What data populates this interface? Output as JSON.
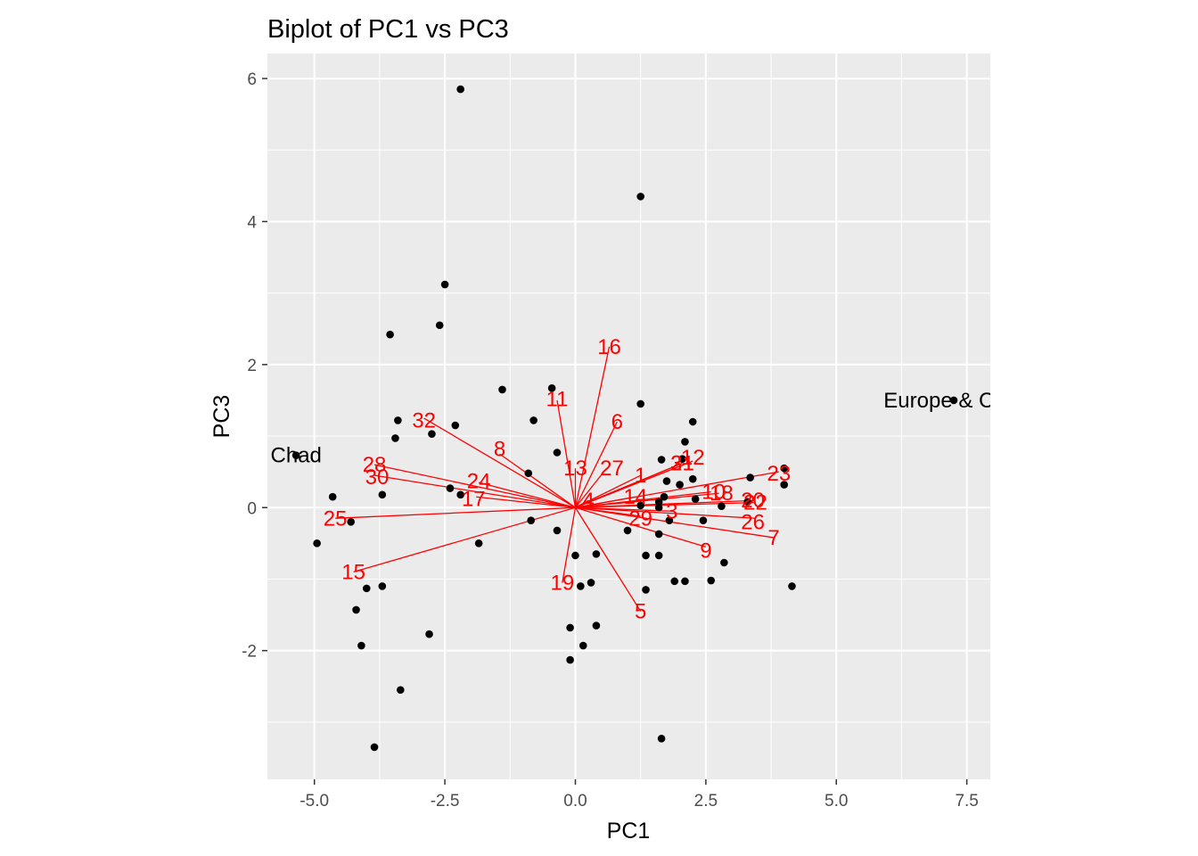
{
  "chart_data": {
    "type": "scatter",
    "title": "Biplot of PC1 vs PC3",
    "xlabel": "PC1",
    "ylabel": "PC3",
    "xlim": [
      -5.9,
      7.95
    ],
    "ylim": [
      -3.8,
      6.35
    ],
    "x_ticks": [
      -5.0,
      -2.5,
      0.0,
      2.5,
      5.0,
      7.5
    ],
    "x_tick_labels": [
      "-5.0",
      "-2.5",
      "0.0",
      "2.5",
      "5.0",
      "7.5"
    ],
    "y_ticks": [
      -2,
      0,
      2,
      4,
      6
    ],
    "y_tick_labels": [
      "-2",
      "0",
      "2",
      "4",
      "6"
    ],
    "grid": true,
    "panel_background": "#ebebeb",
    "point_color": "#000000",
    "loading_color": "#ff0000",
    "points": [
      [
        -2.2,
        5.85
      ],
      [
        1.25,
        4.35
      ],
      [
        -2.5,
        3.12
      ],
      [
        -2.6,
        2.55
      ],
      [
        -3.55,
        2.42
      ],
      [
        -1.4,
        1.65
      ],
      [
        -0.45,
        1.67
      ],
      [
        1.25,
        1.45
      ],
      [
        -3.4,
        1.22
      ],
      [
        -2.3,
        1.15
      ],
      [
        -0.8,
        1.22
      ],
      [
        -2.75,
        1.03
      ],
      [
        -3.45,
        0.97
      ],
      [
        -0.35,
        0.77
      ],
      [
        2.1,
        0.92
      ],
      [
        2.25,
        1.2
      ],
      [
        -0.9,
        0.48
      ],
      [
        1.65,
        0.67
      ],
      [
        2.05,
        0.68
      ],
      [
        1.75,
        0.37
      ],
      [
        2.0,
        0.32
      ],
      [
        2.25,
        0.4
      ],
      [
        4.0,
        0.55
      ],
      [
        3.35,
        0.42
      ],
      [
        4.0,
        0.32
      ],
      [
        -2.4,
        0.27
      ],
      [
        -2.2,
        0.18
      ],
      [
        -3.7,
        0.18
      ],
      [
        -4.65,
        0.15
      ],
      [
        1.7,
        0.15
      ],
      [
        2.3,
        0.12
      ],
      [
        2.8,
        0.02
      ],
      [
        3.3,
        0.08
      ],
      [
        1.25,
        0.03
      ],
      [
        1.6,
        0.08
      ],
      [
        1.6,
        0.0
      ],
      [
        -4.3,
        -0.2
      ],
      [
        -0.85,
        -0.18
      ],
      [
        1.8,
        -0.18
      ],
      [
        2.45,
        -0.18
      ],
      [
        -0.35,
        -0.32
      ],
      [
        1.0,
        -0.32
      ],
      [
        1.6,
        -0.37
      ],
      [
        -4.95,
        -0.5
      ],
      [
        -1.85,
        -0.5
      ],
      [
        0.0,
        -0.67
      ],
      [
        0.4,
        -0.65
      ],
      [
        1.35,
        -0.67
      ],
      [
        1.6,
        -0.67
      ],
      [
        2.85,
        -0.77
      ],
      [
        -4.0,
        -1.13
      ],
      [
        -3.7,
        -1.1
      ],
      [
        0.1,
        -1.1
      ],
      [
        0.3,
        -1.05
      ],
      [
        1.35,
        -1.15
      ],
      [
        1.9,
        -1.03
      ],
      [
        2.1,
        -1.03
      ],
      [
        2.6,
        -1.02
      ],
      [
        4.15,
        -1.1
      ],
      [
        -4.2,
        -1.43
      ],
      [
        -2.8,
        -1.77
      ],
      [
        -0.1,
        -1.68
      ],
      [
        0.4,
        -1.65
      ],
      [
        -4.1,
        -1.93
      ],
      [
        0.15,
        -1.93
      ],
      [
        -0.1,
        -2.13
      ],
      [
        -3.35,
        -2.55
      ],
      [
        -3.85,
        -3.35
      ],
      [
        1.65,
        -3.23
      ],
      [
        -5.35,
        0.73
      ],
      [
        7.25,
        1.5
      ]
    ],
    "point_labels": [
      {
        "text": "Chad",
        "x": -5.35,
        "y": 0.73
      },
      {
        "text": "Europe & Cent",
        "x": 7.25,
        "y": 1.5
      }
    ],
    "loadings": [
      {
        "label": "1",
        "x": 1.25,
        "y": 0.45
      },
      {
        "label": "3",
        "x": 1.85,
        "y": -0.05
      },
      {
        "label": "4",
        "x": 0.25,
        "y": 0.1
      },
      {
        "label": "5",
        "x": 1.25,
        "y": -1.45
      },
      {
        "label": "6",
        "x": 0.8,
        "y": 1.2
      },
      {
        "label": "7",
        "x": 3.8,
        "y": -0.42
      },
      {
        "label": "8",
        "x": -1.45,
        "y": 0.75
      },
      {
        "label": "9",
        "x": 2.5,
        "y": -0.55
      },
      {
        "label": "10",
        "x": 2.6,
        "y": 0.22
      },
      {
        "label": "11",
        "x": -0.35,
        "y": 1.5
      },
      {
        "label": "12",
        "x": 2.25,
        "y": 0.65
      },
      {
        "label": "13",
        "x": 0.0,
        "y": 0.55
      },
      {
        "label": "14",
        "x": 1.15,
        "y": 0.15
      },
      {
        "label": "15",
        "x": -4.25,
        "y": -0.9
      },
      {
        "label": "16",
        "x": 0.65,
        "y": 2.25
      },
      {
        "label": "17",
        "x": -1.9,
        "y": 0.15
      },
      {
        "label": "18",
        "x": 2.75,
        "y": 0.2
      },
      {
        "label": "19",
        "x": -0.25,
        "y": -1.05
      },
      {
        "label": "20",
        "x": 3.45,
        "y": 0.1
      },
      {
        "label": "21",
        "x": 2.05,
        "y": 0.62
      },
      {
        "label": "22",
        "x": 3.45,
        "y": 0.07
      },
      {
        "label": "23",
        "x": 3.9,
        "y": 0.5
      },
      {
        "label": "24",
        "x": -1.85,
        "y": 0.35
      },
      {
        "label": "25",
        "x": -4.6,
        "y": -0.15
      },
      {
        "label": "26",
        "x": 3.45,
        "y": -0.15
      },
      {
        "label": "27",
        "x": 0.6,
        "y": 0.55
      },
      {
        "label": "28",
        "x": -3.85,
        "y": 0.6
      },
      {
        "label": "29",
        "x": 1.25,
        "y": -0.12
      },
      {
        "label": "30",
        "x": -3.85,
        "y": 0.45
      },
      {
        "label": "31",
        "x": 2.05,
        "y": 0.62
      },
      {
        "label": "32",
        "x": -2.9,
        "y": 1.25
      }
    ],
    "loading_label_pos": [
      {
        "label": "1",
        "x": 1.25,
        "y": 0.45
      },
      {
        "label": "3",
        "x": 1.85,
        "y": -0.05
      },
      {
        "label": "4",
        "x": 0.25,
        "y": 0.1
      },
      {
        "label": "5",
        "x": 1.25,
        "y": -1.45
      },
      {
        "label": "6",
        "x": 0.8,
        "y": 1.2
      },
      {
        "label": "7",
        "x": 3.8,
        "y": -0.42
      },
      {
        "label": "8",
        "x": -1.45,
        "y": 0.82
      },
      {
        "label": "9",
        "x": 2.5,
        "y": -0.6
      },
      {
        "label": "10",
        "x": 2.65,
        "y": 0.22
      },
      {
        "label": "11",
        "x": -0.35,
        "y": 1.52
      },
      {
        "label": "12",
        "x": 2.25,
        "y": 0.7
      },
      {
        "label": "13",
        "x": 0.0,
        "y": 0.55
      },
      {
        "label": "14",
        "x": 1.15,
        "y": 0.15
      },
      {
        "label": "15",
        "x": -4.25,
        "y": -0.9
      },
      {
        "label": "16",
        "x": 0.65,
        "y": 2.25
      },
      {
        "label": "17",
        "x": -1.95,
        "y": 0.12
      },
      {
        "label": "18",
        "x": 2.8,
        "y": 0.2
      },
      {
        "label": "19",
        "x": -0.25,
        "y": -1.05
      },
      {
        "label": "20",
        "x": 3.4,
        "y": 0.1
      },
      {
        "label": "21",
        "x": 2.05,
        "y": 0.62
      },
      {
        "label": "22",
        "x": 3.45,
        "y": 0.07
      },
      {
        "label": "23",
        "x": 3.9,
        "y": 0.48
      },
      {
        "label": "24",
        "x": -1.85,
        "y": 0.37
      },
      {
        "label": "25",
        "x": -4.6,
        "y": -0.15
      },
      {
        "label": "26",
        "x": 3.4,
        "y": -0.2
      },
      {
        "label": "27",
        "x": 0.7,
        "y": 0.55
      },
      {
        "label": "28",
        "x": -3.85,
        "y": 0.6
      },
      {
        "label": "29",
        "x": 1.25,
        "y": -0.15
      },
      {
        "label": "30",
        "x": -3.8,
        "y": 0.43
      },
      {
        "label": "31",
        "x": 2.05,
        "y": 0.62
      },
      {
        "label": "32",
        "x": -2.9,
        "y": 1.22
      }
    ]
  }
}
